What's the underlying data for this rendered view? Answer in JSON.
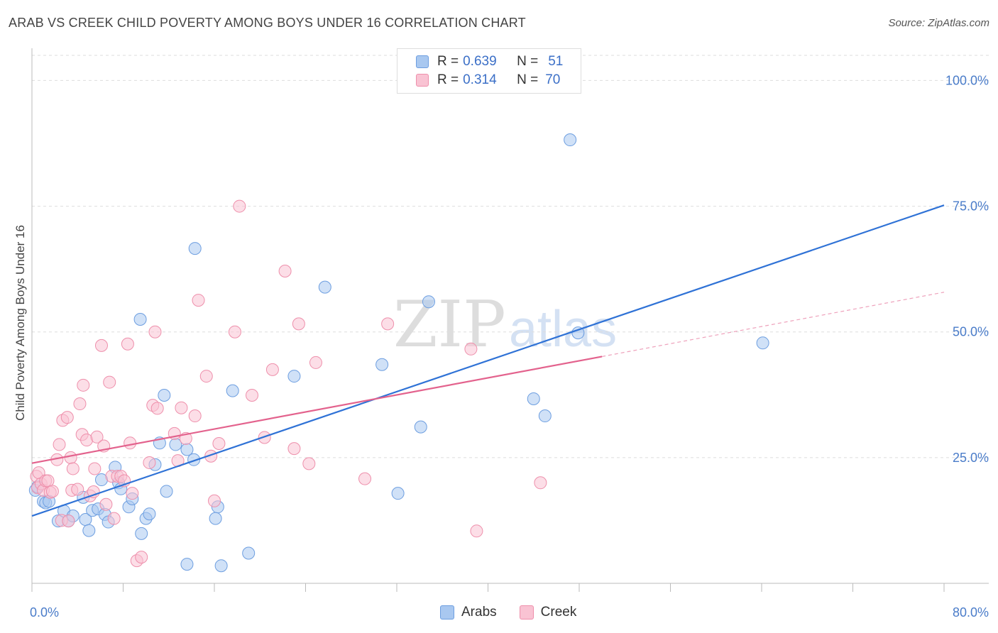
{
  "title": "ARAB VS CREEK CHILD POVERTY AMONG BOYS UNDER 16 CORRELATION CHART",
  "source": "Source: ZipAtlas.com",
  "watermark": {
    "zip": "ZIP",
    "atlas": "atlas"
  },
  "legend": {
    "r_label": "R =",
    "n_label": "N =",
    "rows": [
      {
        "r": "0.639",
        "n": "51",
        "color": "#a9c8f0",
        "border": "#6d9ee0"
      },
      {
        "r": "0.314",
        "n": "70",
        "color": "#f9c3d3",
        "border": "#ee8fab"
      }
    ]
  },
  "bottom_legend": [
    {
      "label": "Arabs",
      "color": "#a9c8f0",
      "border": "#6d9ee0"
    },
    {
      "label": "Creek",
      "color": "#f9c3d3",
      "border": "#ee8fab"
    }
  ],
  "chart_data": {
    "type": "scatter",
    "title": "ARAB VS CREEK CHILD POVERTY AMONG BOYS UNDER 16 CORRELATION CHART",
    "xlabel": "",
    "ylabel": "Child Poverty Among Boys Under 16",
    "xlim": [
      0,
      80
    ],
    "ylim": [
      0,
      105
    ],
    "x_tick_labels": [
      "0.0%",
      "80.0%"
    ],
    "y_ticks": [
      25,
      50,
      75,
      100
    ],
    "y_tick_labels": [
      "25.0%",
      "50.0%",
      "75.0%",
      "100.0%"
    ],
    "series": [
      {
        "name": "Arabs",
        "color": "#6d9ee0",
        "fill": "#a9c8f0",
        "line_color": "#2f72d6",
        "trend": {
          "x0": 0,
          "y0": 13.4,
          "x1": 80,
          "y1": 75.2
        },
        "points": [
          [
            0.3,
            18.5
          ],
          [
            0.5,
            19.2
          ],
          [
            1.0,
            16.3
          ],
          [
            1.2,
            16.0
          ],
          [
            1.5,
            16.3
          ],
          [
            2.3,
            12.4
          ],
          [
            2.8,
            14.4
          ],
          [
            3.2,
            12.4
          ],
          [
            3.6,
            13.4
          ],
          [
            4.5,
            17.1
          ],
          [
            4.7,
            12.7
          ],
          [
            5.0,
            10.5
          ],
          [
            5.3,
            14.5
          ],
          [
            5.8,
            14.8
          ],
          [
            6.1,
            20.6
          ],
          [
            6.4,
            13.7
          ],
          [
            6.7,
            12.2
          ],
          [
            7.3,
            23.1
          ],
          [
            7.6,
            20.0
          ],
          [
            7.8,
            18.8
          ],
          [
            8.5,
            15.2
          ],
          [
            8.8,
            16.8
          ],
          [
            9.5,
            52.5
          ],
          [
            9.6,
            9.9
          ],
          [
            10.0,
            12.9
          ],
          [
            10.3,
            13.8
          ],
          [
            10.8,
            23.6
          ],
          [
            11.2,
            27.9
          ],
          [
            11.6,
            37.4
          ],
          [
            11.8,
            18.3
          ],
          [
            12.6,
            27.6
          ],
          [
            13.6,
            26.6
          ],
          [
            14.2,
            24.6
          ],
          [
            14.3,
            66.6
          ],
          [
            13.6,
            3.8
          ],
          [
            16.3,
            15.2
          ],
          [
            16.1,
            12.9
          ],
          [
            16.6,
            3.5
          ],
          [
            17.6,
            38.3
          ],
          [
            19.0,
            6.0
          ],
          [
            23.0,
            41.2
          ],
          [
            25.7,
            58.9
          ],
          [
            30.7,
            43.5
          ],
          [
            32.1,
            17.9
          ],
          [
            34.1,
            31.1
          ],
          [
            34.8,
            56.0
          ],
          [
            44.0,
            36.7
          ],
          [
            45.0,
            33.3
          ],
          [
            47.2,
            88.2
          ],
          [
            47.9,
            49.8
          ],
          [
            64.1,
            47.8
          ]
        ]
      },
      {
        "name": "Creek",
        "color": "#ee8fab",
        "fill": "#f9c3d3",
        "line_color": "#e3628d",
        "trend": {
          "x0": 0,
          "y0": 23.9,
          "x1": 50,
          "y1": 45.1
        },
        "trend_extension": {
          "x0": 50,
          "y0": 45.1,
          "x1": 80,
          "y1": 57.9
        },
        "points": [
          [
            0.4,
            21.3
          ],
          [
            0.5,
            19.0
          ],
          [
            0.6,
            22.0
          ],
          [
            0.8,
            19.8
          ],
          [
            1.0,
            18.5
          ],
          [
            1.2,
            20.4
          ],
          [
            1.4,
            20.4
          ],
          [
            1.6,
            18.1
          ],
          [
            1.8,
            18.3
          ],
          [
            2.2,
            24.6
          ],
          [
            2.4,
            27.6
          ],
          [
            2.6,
            12.5
          ],
          [
            2.7,
            32.4
          ],
          [
            3.1,
            33.0
          ],
          [
            3.2,
            12.4
          ],
          [
            3.4,
            25.0
          ],
          [
            3.5,
            18.5
          ],
          [
            3.6,
            22.8
          ],
          [
            4.0,
            18.7
          ],
          [
            4.2,
            35.7
          ],
          [
            4.4,
            29.6
          ],
          [
            4.5,
            39.4
          ],
          [
            4.8,
            28.5
          ],
          [
            5.1,
            17.4
          ],
          [
            5.4,
            18.2
          ],
          [
            5.5,
            22.8
          ],
          [
            5.7,
            29.1
          ],
          [
            6.1,
            47.3
          ],
          [
            6.3,
            27.3
          ],
          [
            6.5,
            15.7
          ],
          [
            6.8,
            40.0
          ],
          [
            7.0,
            21.3
          ],
          [
            7.2,
            12.9
          ],
          [
            7.5,
            21.3
          ],
          [
            7.8,
            21.3
          ],
          [
            8.1,
            20.4
          ],
          [
            8.4,
            47.6
          ],
          [
            8.6,
            27.9
          ],
          [
            8.8,
            17.9
          ],
          [
            9.2,
            4.5
          ],
          [
            9.6,
            5.2
          ],
          [
            10.3,
            24.0
          ],
          [
            10.6,
            35.4
          ],
          [
            10.8,
            50.0
          ],
          [
            11.0,
            34.8
          ],
          [
            12.5,
            29.8
          ],
          [
            12.8,
            24.4
          ],
          [
            13.1,
            34.9
          ],
          [
            13.5,
            28.8
          ],
          [
            14.3,
            33.3
          ],
          [
            14.6,
            56.3
          ],
          [
            15.3,
            41.2
          ],
          [
            15.7,
            25.3
          ],
          [
            16.0,
            16.4
          ],
          [
            16.4,
            27.8
          ],
          [
            17.8,
            50.0
          ],
          [
            18.2,
            75.0
          ],
          [
            19.3,
            37.4
          ],
          [
            20.4,
            29.0
          ],
          [
            21.1,
            42.5
          ],
          [
            22.2,
            62.1
          ],
          [
            23.0,
            26.8
          ],
          [
            23.4,
            51.6
          ],
          [
            24.3,
            23.8
          ],
          [
            24.9,
            43.9
          ],
          [
            29.2,
            20.8
          ],
          [
            31.2,
            51.6
          ],
          [
            38.5,
            46.6
          ],
          [
            39.0,
            10.4
          ],
          [
            44.6,
            20.0
          ]
        ]
      }
    ]
  }
}
